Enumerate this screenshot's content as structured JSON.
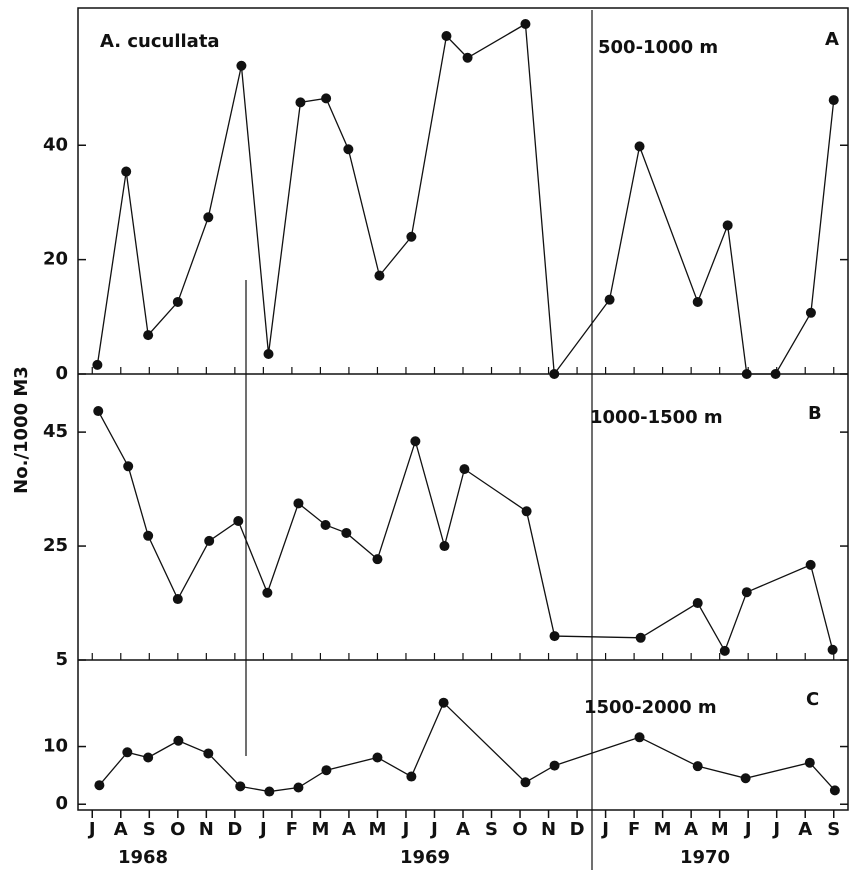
{
  "years": [
    "1968",
    "1969",
    "1970"
  ],
  "chart_data": [
    {
      "type": "line",
      "annotations": [
        "A. cucullata",
        "500-1000 m",
        "A"
      ],
      "xlim": [
        -0.5,
        26.5
      ],
      "ylim": [
        0,
        64
      ],
      "yticks": [
        0,
        20,
        40
      ],
      "series": [
        {
          "color": "#111111",
          "x": [
            0.18,
            1.19,
            1.96,
            3.0,
            4.07,
            5.23,
            6.18,
            7.3,
            8.2,
            8.98,
            10.07,
            11.19,
            12.42,
            13.16,
            15.19,
            16.2,
            18.14,
            19.19,
            21.23,
            22.28,
            22.95,
            23.96,
            25.2,
            26.0
          ],
          "values": [
            1.6,
            35.4,
            6.8,
            12.6,
            27.4,
            53.9,
            3.5,
            47.5,
            48.2,
            39.3,
            17.2,
            24,
            59.1,
            55.3,
            61.2,
            0,
            13,
            39.8,
            12.6,
            26,
            0,
            0,
            10.7,
            47.9
          ]
        }
      ]
    },
    {
      "type": "line",
      "annotations": [
        "1000-1500 m",
        "B"
      ],
      "ylabel": "No./1000 M3",
      "xlim": [
        -0.5,
        26.5
      ],
      "ylim": [
        5,
        55.2
      ],
      "yticks": [
        5,
        25,
        45
      ],
      "series": [
        {
          "color": "#111111",
          "x": [
            0.21,
            1.26,
            1.96,
            3.0,
            4.1,
            5.12,
            6.14,
            7.23,
            8.18,
            8.91,
            10.0,
            11.33,
            12.35,
            13.05,
            15.23,
            16.21,
            19.23,
            21.23,
            22.18,
            22.95,
            25.19,
            25.96
          ],
          "values": [
            48.7,
            39,
            26.8,
            15.7,
            25.9,
            29.4,
            16.8,
            32.5,
            28.7,
            27.3,
            22.7,
            43.4,
            25,
            38.5,
            31.1,
            9.2,
            8.9,
            15,
            6.6,
            16.9,
            21.7,
            6.8
          ]
        }
      ]
    },
    {
      "type": "line",
      "annotations": [
        "1500-2000 m",
        "C"
      ],
      "xlim": [
        -0.5,
        26.5
      ],
      "ylim": [
        -1,
        25
      ],
      "yticks": [
        0,
        10
      ],
      "xticks": [
        {
          "value": 0,
          "label": "J"
        },
        {
          "value": 1,
          "label": "A"
        },
        {
          "value": 2,
          "label": "S"
        },
        {
          "value": 3,
          "label": "O"
        },
        {
          "value": 4,
          "label": "N"
        },
        {
          "value": 5,
          "label": "D"
        },
        {
          "value": 6,
          "label": "J"
        },
        {
          "value": 7,
          "label": "F"
        },
        {
          "value": 8,
          "label": "M"
        },
        {
          "value": 9,
          "label": "A"
        },
        {
          "value": 10,
          "label": "M"
        },
        {
          "value": 11,
          "label": "J"
        },
        {
          "value": 12,
          "label": "J"
        },
        {
          "value": 13,
          "label": "A"
        },
        {
          "value": 14,
          "label": "S"
        },
        {
          "value": 15,
          "label": "O"
        },
        {
          "value": 16,
          "label": "N"
        },
        {
          "value": 17,
          "label": "D"
        },
        {
          "value": 18,
          "label": "J"
        },
        {
          "value": 19,
          "label": "F"
        },
        {
          "value": 20,
          "label": "M"
        },
        {
          "value": 21,
          "label": "A"
        },
        {
          "value": 22,
          "label": "M"
        },
        {
          "value": 23,
          "label": "J"
        },
        {
          "value": 24,
          "label": "J"
        },
        {
          "value": 25,
          "label": "A"
        },
        {
          "value": 26,
          "label": "S"
        }
      ],
      "series": [
        {
          "color": "#111111",
          "x": [
            0.25,
            1.23,
            1.96,
            3.02,
            4.07,
            5.19,
            6.21,
            7.23,
            8.21,
            10.0,
            11.19,
            12.32,
            15.19,
            16.21,
            19.19,
            21.23,
            22.91,
            25.16,
            26.04
          ],
          "values": [
            3.3,
            9,
            8.1,
            11,
            8.8,
            3.1,
            2.2,
            2.9,
            5.9,
            8.1,
            4.8,
            17.6,
            3.8,
            6.7,
            11.6,
            6.6,
            4.5,
            7.2,
            2.4
          ]
        }
      ]
    }
  ]
}
